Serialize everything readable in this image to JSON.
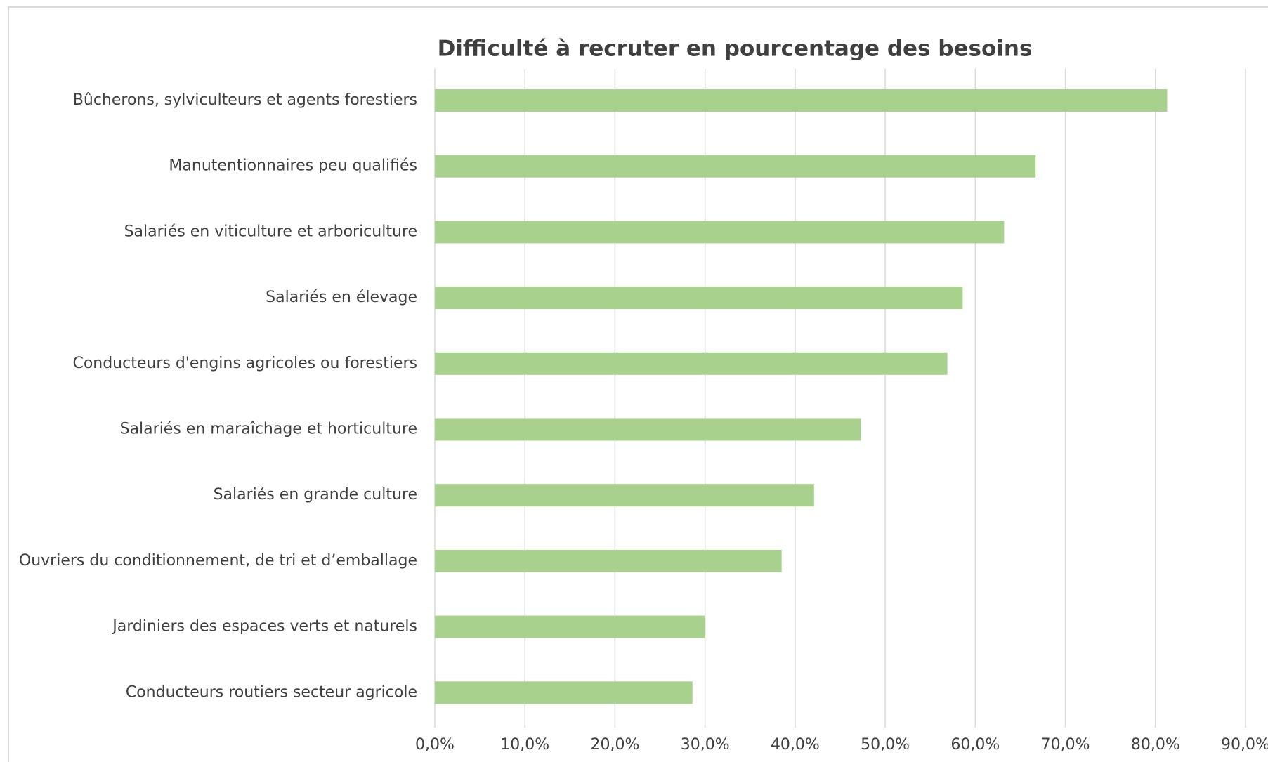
{
  "chart_data": {
    "type": "bar",
    "orientation": "horizontal",
    "title": "Difficulté à recruter en pourcentage des besoins",
    "categories": [
      "Bûcherons, sylviculteurs et agents forestiers",
      "Manutentionnaires peu qualifiés",
      "Salariés en viticulture et arboriculture",
      "Salariés en élevage",
      "Conducteurs d'engins agricoles ou forestiers",
      "Salariés en maraîchage et horticulture",
      "Salariés en grande culture",
      "Ouvriers du conditionnement, de tri et d’emballage",
      "Jardiniers des espaces verts et naturels",
      "Conducteurs routiers secteur agricole"
    ],
    "values": [
      81.3,
      66.7,
      63.2,
      58.6,
      56.9,
      47.3,
      42.1,
      38.5,
      30.0,
      28.6
    ],
    "color": "#a9d18e",
    "xlim": [
      0,
      90
    ],
    "xticks": [
      {
        "value": 0,
        "label": "0,0%"
      },
      {
        "value": 10,
        "label": "10,0%"
      },
      {
        "value": 20,
        "label": "20,0%"
      },
      {
        "value": 30,
        "label": "30,0%"
      },
      {
        "value": 40,
        "label": "40,0%"
      },
      {
        "value": 50,
        "label": "50,0%"
      },
      {
        "value": 60,
        "label": "60,0%"
      },
      {
        "value": 70,
        "label": "70,0%"
      },
      {
        "value": 80,
        "label": "80,0%"
      },
      {
        "value": 90,
        "label": "90,0%"
      }
    ],
    "grid": true
  }
}
